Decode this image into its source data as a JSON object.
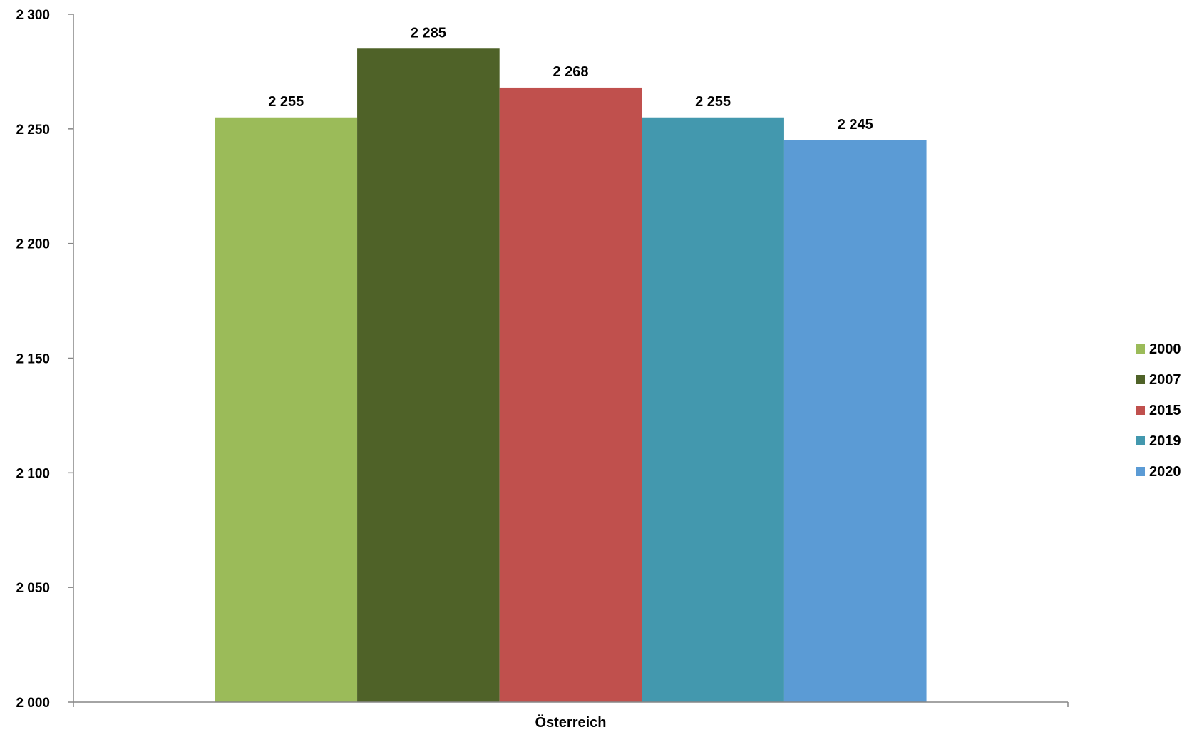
{
  "chart_data": {
    "type": "bar",
    "categories": [
      "Österreich"
    ],
    "series": [
      {
        "name": "2000",
        "values": [
          2255
        ],
        "color": "#9BBB59",
        "label": "2 255"
      },
      {
        "name": "2007",
        "values": [
          2285
        ],
        "color": "#4F6228",
        "label": "2 285"
      },
      {
        "name": "2015",
        "values": [
          2268
        ],
        "color": "#C0504D",
        "label": "2 268"
      },
      {
        "name": "2019",
        "values": [
          2255
        ],
        "color": "#4398AE",
        "label": "2 255"
      },
      {
        "name": "2020",
        "values": [
          2245
        ],
        "color": "#5B9BD5",
        "label": "2 245"
      }
    ],
    "ylim": [
      2000,
      2300
    ],
    "yticks": [
      2000,
      2050,
      2100,
      2150,
      2200,
      2250,
      2300
    ],
    "ytick_labels": [
      "2 000",
      "2 050",
      "2 100",
      "2 150",
      "2 200",
      "2 250",
      "2 300"
    ],
    "grid": false,
    "legend_position": "right",
    "title": "",
    "xlabel": "",
    "ylabel": ""
  }
}
